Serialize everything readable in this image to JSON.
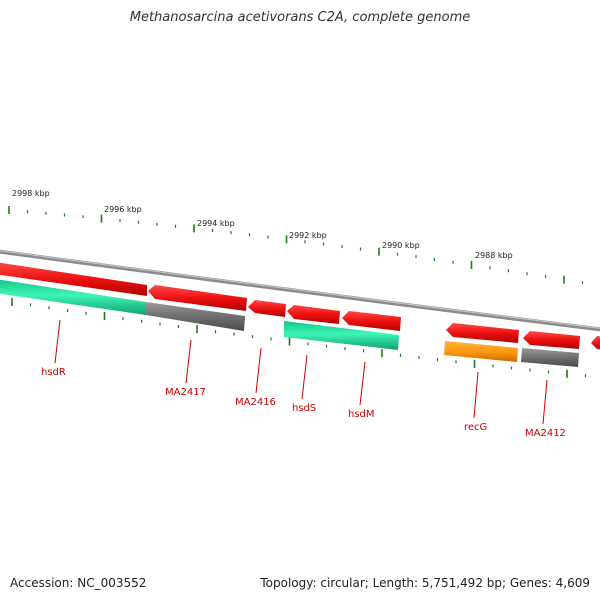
{
  "title": "Methanosarcina acetivorans C2A, complete genome",
  "footer": {
    "accession": "Accession: NC_003552",
    "summary": "Topology: circular; Length: 5,751,492 bp; Genes: 4,609"
  },
  "colors": {
    "backbone": "#8c8c8c",
    "ticks": "#1a7a1a",
    "label": "#cc0000",
    "kbp_label": "#222222",
    "gene_red": "#ee1111",
    "gene_teal": "#22e8a0",
    "gene_gray": "#6e6e6e",
    "gene_orange": "#ff9a10"
  },
  "ruler": {
    "labels": [
      "2998 kbp",
      "2996 kbp",
      "2994 kbp",
      "2992 kbp",
      "2990 kbp",
      "2988 kbp"
    ]
  },
  "genes": [
    {
      "name": "hsdR",
      "color": "teal"
    },
    {
      "name": "MA2417",
      "color": "gray"
    },
    {
      "name": "MA2416",
      "color": "red"
    },
    {
      "name": "hsdS",
      "color": "teal"
    },
    {
      "name": "hsdM",
      "color": "red"
    },
    {
      "name": "recG",
      "color": "orange"
    },
    {
      "name": "MA2412",
      "color": "gray"
    }
  ]
}
